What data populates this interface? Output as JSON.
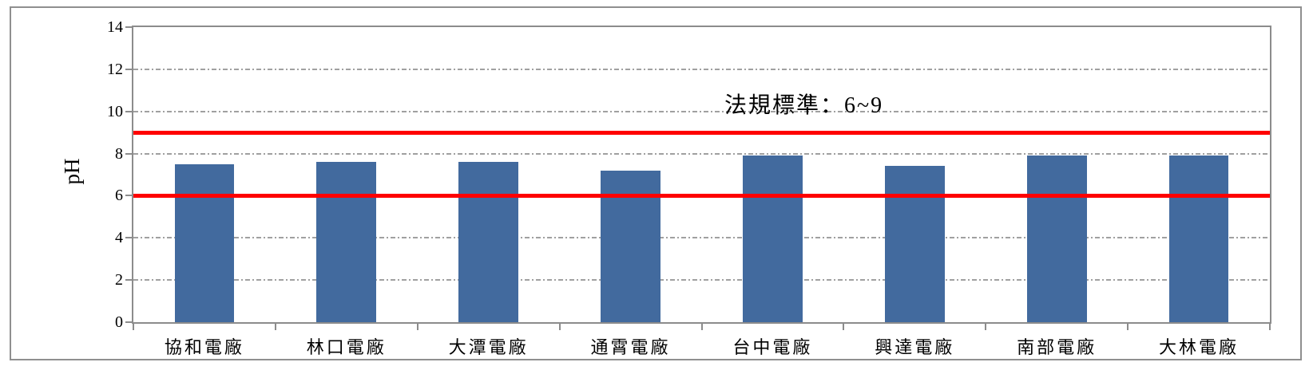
{
  "chart_data": {
    "type": "bar",
    "title": "",
    "categories": [
      "協和電廠",
      "林口電廠",
      "大潭電廠",
      "通霄電廠",
      "台中電廠",
      "興達電廠",
      "南部電廠",
      "大林電廠"
    ],
    "values": [
      7.5,
      7.6,
      7.6,
      7.2,
      7.9,
      7.4,
      7.9,
      7.9
    ],
    "xlabel": "",
    "ylabel": "pH",
    "ylim": [
      0,
      14
    ],
    "yticks": [
      0,
      2,
      4,
      6,
      8,
      10,
      12,
      14
    ],
    "grid": "horizontal dash-dot at each y tick",
    "legend_position": "none",
    "annotation": "法規標準：6~9",
    "reference_lines": [
      {
        "value": 9,
        "color": "#ff0000",
        "label": "upper regulatory limit"
      },
      {
        "value": 6,
        "color": "#ff0000",
        "label": "lower regulatory limit"
      }
    ],
    "bar_color": "#426a9e",
    "gridline_color": "#a0a0a0",
    "axis_color": "#8c8c8c",
    "text_color": "#000000"
  }
}
